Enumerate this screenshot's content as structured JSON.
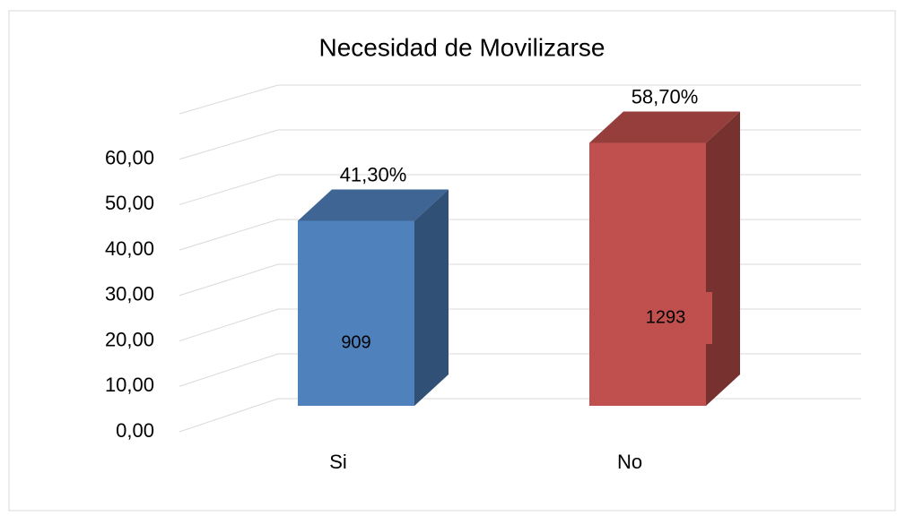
{
  "chart_data": {
    "type": "bar3d",
    "title": "Necesidad de  Movilizarse",
    "categories": [
      "Si",
      "No"
    ],
    "values": [
      41.3,
      58.7
    ],
    "value_labels": [
      "41,30%",
      "58,70%"
    ],
    "counts": [
      909,
      1293
    ],
    "colors": [
      "#4f81bd",
      "#c0504d"
    ],
    "ylim": [
      0,
      70
    ],
    "yticks": [
      {
        "value": 0,
        "label": "0,00"
      },
      {
        "value": 10,
        "label": "10,00"
      },
      {
        "value": 20,
        "label": "20,00"
      },
      {
        "value": 30,
        "label": "30,00"
      },
      {
        "value": 40,
        "label": "40,00"
      },
      {
        "value": 50,
        "label": "50,00"
      },
      {
        "value": 60,
        "label": "60,00"
      }
    ],
    "grid": true
  }
}
